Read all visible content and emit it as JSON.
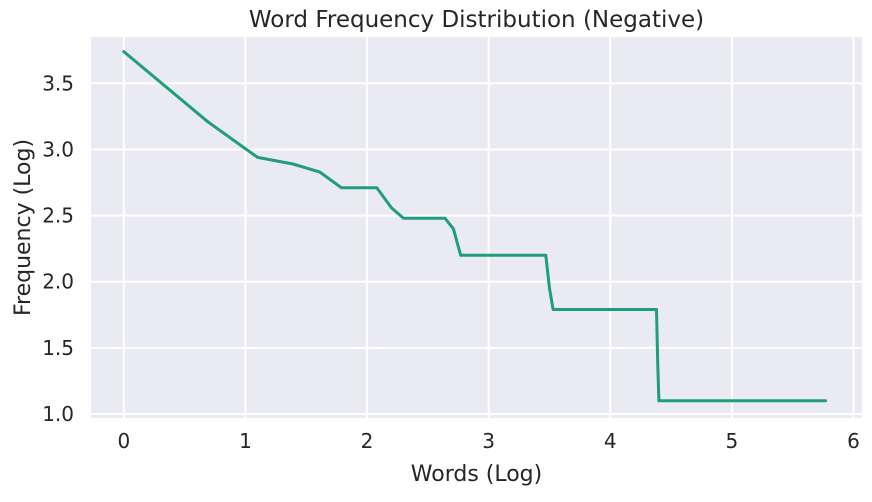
{
  "chart_data": {
    "type": "line",
    "title": "Word Frequency Distribution (Negative)",
    "xlabel": "Words (Log)",
    "ylabel": "Frequency (Log)",
    "xlim": [
      -0.27,
      6.07
    ],
    "ylim": [
      0.97,
      3.85
    ],
    "xticks": [
      0,
      1,
      2,
      3,
      4,
      5,
      6
    ],
    "xtick_labels": [
      "0",
      "1",
      "2",
      "3",
      "4",
      "5",
      "6"
    ],
    "yticks": [
      1.0,
      1.5,
      2.0,
      2.5,
      3.0,
      3.5
    ],
    "ytick_labels": [
      "1.0",
      "1.5",
      "2.0",
      "2.5",
      "3.0",
      "3.5"
    ],
    "grid": true,
    "background": "#EAEAF2",
    "grid_color": "#FFFFFF",
    "series": [
      {
        "color": "#1F9E78",
        "x": [
          0.0,
          0.69,
          1.1,
          1.39,
          1.61,
          1.79,
          1.95,
          2.08,
          2.2,
          2.3,
          2.4,
          2.48,
          2.56,
          2.64,
          2.71,
          2.77,
          3.47,
          3.5,
          3.53,
          4.38,
          4.39,
          4.4,
          5.77
        ],
        "y": [
          3.74,
          3.21,
          2.94,
          2.89,
          2.83,
          2.71,
          2.71,
          2.71,
          2.56,
          2.48,
          2.48,
          2.48,
          2.48,
          2.48,
          2.4,
          2.2,
          2.2,
          1.95,
          1.79,
          1.79,
          1.39,
          1.1,
          1.1
        ]
      }
    ]
  }
}
